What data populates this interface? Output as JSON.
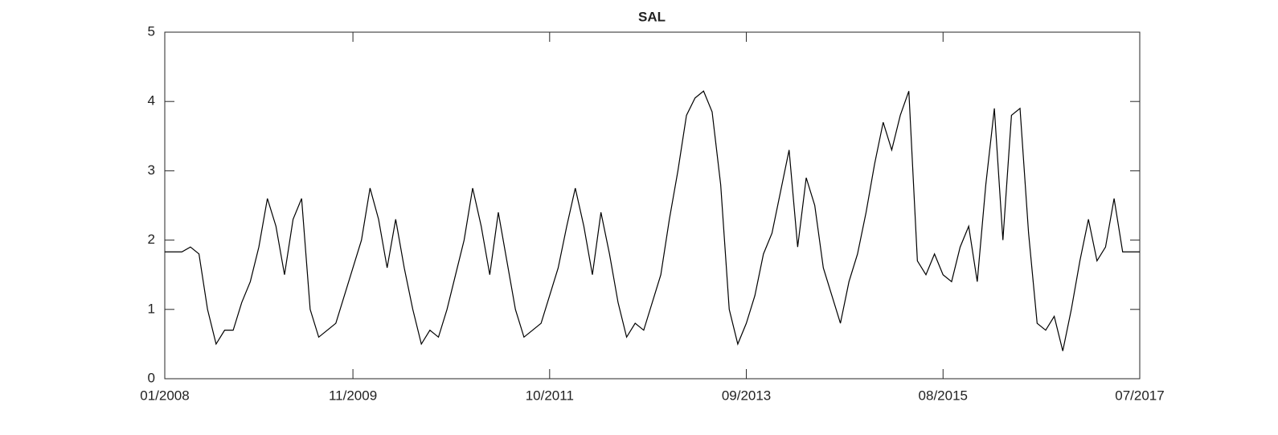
{
  "chart_data": {
    "type": "line",
    "title": "SAL",
    "x": [
      "2008-01",
      "2008-02",
      "2008-03",
      "2008-04",
      "2008-05",
      "2008-06",
      "2008-07",
      "2008-08",
      "2008-09",
      "2008-10",
      "2008-11",
      "2008-12",
      "2009-01",
      "2009-02",
      "2009-03",
      "2009-04",
      "2009-05",
      "2009-06",
      "2009-07",
      "2009-08",
      "2009-09",
      "2009-10",
      "2009-11",
      "2009-12",
      "2010-01",
      "2010-02",
      "2010-03",
      "2010-04",
      "2010-05",
      "2010-06",
      "2010-07",
      "2010-08",
      "2010-09",
      "2010-10",
      "2010-11",
      "2010-12",
      "2011-01",
      "2011-02",
      "2011-03",
      "2011-04",
      "2011-05",
      "2011-06",
      "2011-07",
      "2011-08",
      "2011-09",
      "2011-10",
      "2011-11",
      "2011-12",
      "2012-01",
      "2012-02",
      "2012-03",
      "2012-04",
      "2012-05",
      "2012-06",
      "2012-07",
      "2012-08",
      "2012-09",
      "2012-10",
      "2012-11",
      "2012-12",
      "2013-01",
      "2013-02",
      "2013-03",
      "2013-04",
      "2013-05",
      "2013-06",
      "2013-07",
      "2013-08",
      "2013-09",
      "2013-10",
      "2013-11",
      "2013-12",
      "2014-01",
      "2014-02",
      "2014-03",
      "2014-04",
      "2014-05",
      "2014-06",
      "2014-07",
      "2014-08",
      "2014-09",
      "2014-10",
      "2014-11",
      "2014-12",
      "2015-01",
      "2015-02",
      "2015-03",
      "2015-04",
      "2015-05",
      "2015-06",
      "2015-07",
      "2015-08",
      "2015-09",
      "2015-10",
      "2015-11",
      "2015-12",
      "2016-01",
      "2016-02",
      "2016-03",
      "2016-04",
      "2016-05",
      "2016-06",
      "2016-07",
      "2016-08",
      "2016-09",
      "2016-10",
      "2016-11",
      "2016-12",
      "2017-01",
      "2017-02",
      "2017-03",
      "2017-04",
      "2017-05",
      "2017-06",
      "2017-07"
    ],
    "series": [
      {
        "name": "SAL",
        "color": "#000000",
        "values": [
          1.83,
          1.83,
          1.83,
          1.9,
          1.8,
          1.0,
          0.5,
          0.7,
          0.7,
          1.1,
          1.4,
          1.9,
          2.6,
          2.2,
          1.5,
          2.3,
          2.6,
          1.0,
          0.6,
          0.7,
          0.8,
          1.2,
          1.6,
          2.0,
          2.75,
          2.3,
          1.6,
          2.3,
          1.6,
          1.0,
          0.5,
          0.7,
          0.6,
          1.0,
          1.5,
          2.0,
          2.75,
          2.2,
          1.5,
          2.4,
          1.7,
          1.0,
          0.6,
          0.7,
          0.8,
          1.2,
          1.6,
          2.2,
          2.75,
          2.2,
          1.5,
          2.4,
          1.8,
          1.1,
          0.6,
          0.8,
          0.7,
          1.1,
          1.5,
          2.3,
          3.0,
          3.8,
          4.05,
          4.15,
          3.85,
          2.8,
          1.0,
          0.5,
          0.8,
          1.2,
          1.8,
          2.1,
          2.7,
          3.3,
          1.9,
          2.9,
          2.5,
          1.6,
          1.2,
          0.8,
          1.4,
          1.8,
          2.4,
          3.1,
          3.7,
          3.3,
          3.8,
          4.15,
          1.7,
          1.5,
          1.8,
          1.5,
          1.4,
          1.9,
          2.2,
          1.4,
          2.8,
          3.9,
          2.0,
          3.8,
          3.9,
          2.1,
          0.8,
          0.7,
          0.9,
          0.4,
          1.0,
          1.7,
          2.3,
          1.7,
          1.9,
          2.6,
          1.83,
          1.83,
          1.83
        ]
      }
    ],
    "xlim": [
      "2008-01",
      "2017-07"
    ],
    "xticks": [
      {
        "value": "2008-01",
        "label": "01/2008"
      },
      {
        "value": "2009-11",
        "label": "11/2009"
      },
      {
        "value": "2011-10",
        "label": "10/2011"
      },
      {
        "value": "2013-09",
        "label": "09/2013"
      },
      {
        "value": "2015-08",
        "label": "08/2015"
      },
      {
        "value": "2017-07",
        "label": "07/2017"
      }
    ],
    "ylim": [
      0,
      5
    ],
    "yticks": [
      0,
      1,
      2,
      3,
      4,
      5
    ]
  }
}
